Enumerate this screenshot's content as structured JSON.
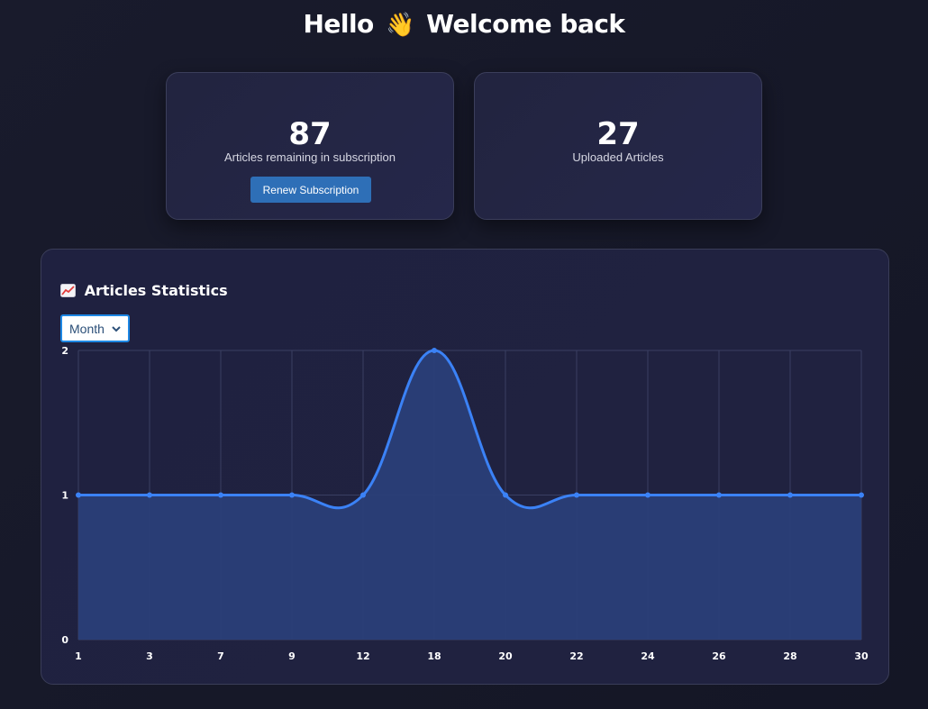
{
  "greeting": {
    "hello": "Hello",
    "wave": "👋",
    "rest": "Welcome back"
  },
  "cards": {
    "remaining": {
      "value": "87",
      "label": "Articles remaining in subscription",
      "button_label": "Renew Subscription"
    },
    "uploaded": {
      "value": "27",
      "label": "Uploaded Articles"
    }
  },
  "stats": {
    "title": "Articles Statistics",
    "icon": "chart-increasing-icon",
    "period_selected": "Month"
  },
  "colors": {
    "accent": "#3b82f6",
    "fill": "#2a3f78",
    "button": "#2e6fb7",
    "select_border": "#1e88e5"
  },
  "chart_data": {
    "type": "line",
    "x": [
      "1",
      "3",
      "7",
      "9",
      "12",
      "18",
      "20",
      "22",
      "24",
      "26",
      "28",
      "30"
    ],
    "values": [
      1,
      1,
      1,
      1,
      1,
      2,
      1,
      1,
      1,
      1,
      1,
      1
    ],
    "yticks": [
      "0",
      "1",
      "2"
    ],
    "ylim": [
      0,
      2
    ],
    "grid": true,
    "area_fill": true,
    "smooth": true
  }
}
